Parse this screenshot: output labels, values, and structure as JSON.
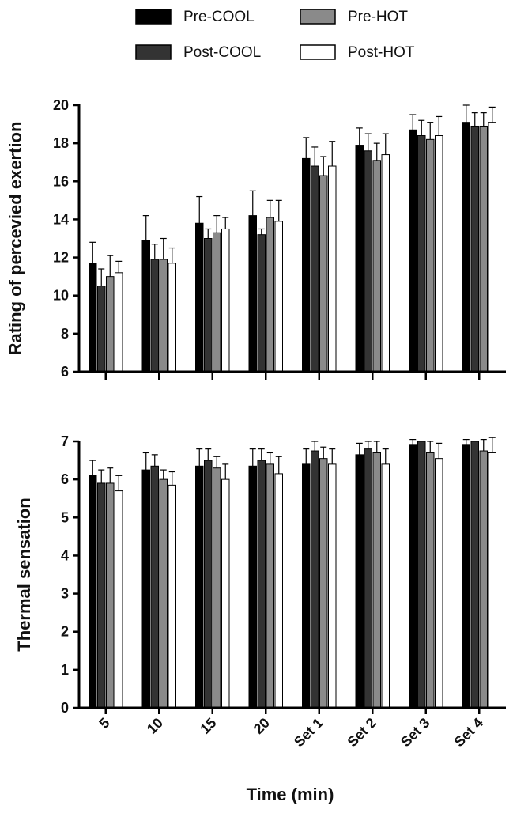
{
  "legend": [
    {
      "label": "Pre-COOL",
      "color": "#000000"
    },
    {
      "label": "Pre-HOT",
      "color": "#8a8a8a"
    },
    {
      "label": "Post-COOL",
      "color": "#333333"
    },
    {
      "label": "Post-HOT",
      "color": "#ffffff"
    }
  ],
  "x_axis_title": "Time (min)",
  "chart_data": [
    {
      "type": "bar",
      "ylabel": "Rating of percevied exertion",
      "xlabel": "",
      "ylim": [
        6,
        20
      ],
      "yticks": [
        6,
        8,
        10,
        12,
        14,
        16,
        18,
        20
      ],
      "categories": [
        "5",
        "10",
        "15",
        "20",
        "Set 1",
        "Set 2",
        "Set 3",
        "Set 4"
      ],
      "series": [
        {
          "name": "Pre-COOL",
          "color": "#000000",
          "values": [
            11.7,
            12.9,
            13.8,
            14.2,
            17.2,
            17.9,
            18.7,
            19.1
          ],
          "errors": [
            1.1,
            1.3,
            1.4,
            1.3,
            1.1,
            0.9,
            0.8,
            0.9
          ]
        },
        {
          "name": "Post-COOL",
          "color": "#333333",
          "values": [
            10.5,
            11.9,
            13.0,
            13.2,
            16.8,
            17.6,
            18.4,
            18.9
          ],
          "errors": [
            0.9,
            0.8,
            0.5,
            0.3,
            1.0,
            0.9,
            0.8,
            0.7
          ]
        },
        {
          "name": "Pre-HOT",
          "color": "#8a8a8a",
          "values": [
            11.0,
            11.9,
            13.3,
            14.1,
            16.3,
            17.1,
            18.2,
            18.9
          ],
          "errors": [
            1.1,
            1.1,
            0.9,
            0.9,
            1.0,
            0.9,
            0.9,
            0.7
          ]
        },
        {
          "name": "Post-HOT",
          "color": "#ffffff",
          "values": [
            11.2,
            11.7,
            13.5,
            13.9,
            16.8,
            17.4,
            18.4,
            19.1
          ],
          "errors": [
            0.6,
            0.8,
            0.6,
            1.1,
            1.3,
            1.1,
            1.0,
            0.8
          ]
        }
      ]
    },
    {
      "type": "bar",
      "ylabel": "Thermal sensation",
      "xlabel": "Time (min)",
      "ylim": [
        0,
        7
      ],
      "yticks": [
        0,
        1,
        2,
        3,
        4,
        5,
        6,
        7
      ],
      "categories": [
        "5",
        "10",
        "15",
        "20",
        "Set 1",
        "Set 2",
        "Set 3",
        "Set 4"
      ],
      "series": [
        {
          "name": "Pre-COOL",
          "color": "#000000",
          "values": [
            6.1,
            6.25,
            6.35,
            6.35,
            6.4,
            6.65,
            6.9,
            6.9
          ],
          "errors": [
            0.4,
            0.45,
            0.45,
            0.45,
            0.4,
            0.3,
            0.15,
            0.15
          ]
        },
        {
          "name": "Post-COOL",
          "color": "#333333",
          "values": [
            5.9,
            6.35,
            6.5,
            6.5,
            6.75,
            6.8,
            7.0,
            7.0
          ],
          "errors": [
            0.35,
            0.3,
            0.3,
            0.3,
            0.25,
            0.2,
            0.0,
            0.0
          ]
        },
        {
          "name": "Pre-HOT",
          "color": "#8a8a8a",
          "values": [
            5.9,
            6.0,
            6.3,
            6.4,
            6.55,
            6.7,
            6.7,
            6.75
          ],
          "errors": [
            0.4,
            0.25,
            0.3,
            0.3,
            0.3,
            0.3,
            0.3,
            0.3
          ]
        },
        {
          "name": "Post-HOT",
          "color": "#ffffff",
          "values": [
            5.7,
            5.85,
            6.0,
            6.15,
            6.4,
            6.4,
            6.55,
            6.7
          ],
          "errors": [
            0.4,
            0.35,
            0.4,
            0.45,
            0.4,
            0.4,
            0.4,
            0.4
          ]
        }
      ]
    }
  ]
}
